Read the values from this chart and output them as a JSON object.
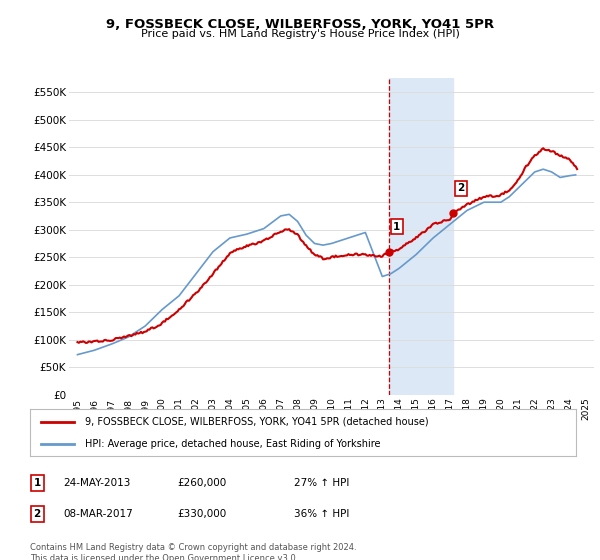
{
  "title": "9, FOSSBECK CLOSE, WILBERFOSS, YORK, YO41 5PR",
  "subtitle": "Price paid vs. HM Land Registry's House Price Index (HPI)",
  "legend_line1": "9, FOSSBECK CLOSE, WILBERFOSS, YORK, YO41 5PR (detached house)",
  "legend_line2": "HPI: Average price, detached house, East Riding of Yorkshire",
  "transaction1_date": "24-MAY-2013",
  "transaction1_price": "£260,000",
  "transaction1_hpi": "27% ↑ HPI",
  "transaction1_year": 2013.39,
  "transaction1_value": 260000,
  "transaction2_date": "08-MAR-2017",
  "transaction2_price": "£330,000",
  "transaction2_hpi": "36% ↑ HPI",
  "transaction2_year": 2017.18,
  "transaction2_value": 330000,
  "footer": "Contains HM Land Registry data © Crown copyright and database right 2024.\nThis data is licensed under the Open Government Licence v3.0.",
  "red_color": "#cc0000",
  "blue_color": "#6699cc",
  "shade_color": "#dce8f5",
  "grid_color": "#dddddd",
  "bg_color": "#ffffff",
  "xlim": [
    1994.5,
    2025.5
  ],
  "ylim": [
    0,
    575000
  ],
  "yticks": [
    0,
    50000,
    100000,
    150000,
    200000,
    250000,
    300000,
    350000,
    400000,
    450000,
    500000,
    550000
  ],
  "ytick_labels": [
    "£0",
    "£50K",
    "£100K",
    "£150K",
    "£200K",
    "£250K",
    "£300K",
    "£350K",
    "£400K",
    "£450K",
    "£500K",
    "£550K"
  ],
  "xticks": [
    1995,
    1996,
    1997,
    1998,
    1999,
    2000,
    2001,
    2002,
    2003,
    2004,
    2005,
    2006,
    2007,
    2008,
    2009,
    2010,
    2011,
    2012,
    2013,
    2014,
    2015,
    2016,
    2017,
    2018,
    2019,
    2020,
    2021,
    2022,
    2023,
    2024,
    2025
  ]
}
